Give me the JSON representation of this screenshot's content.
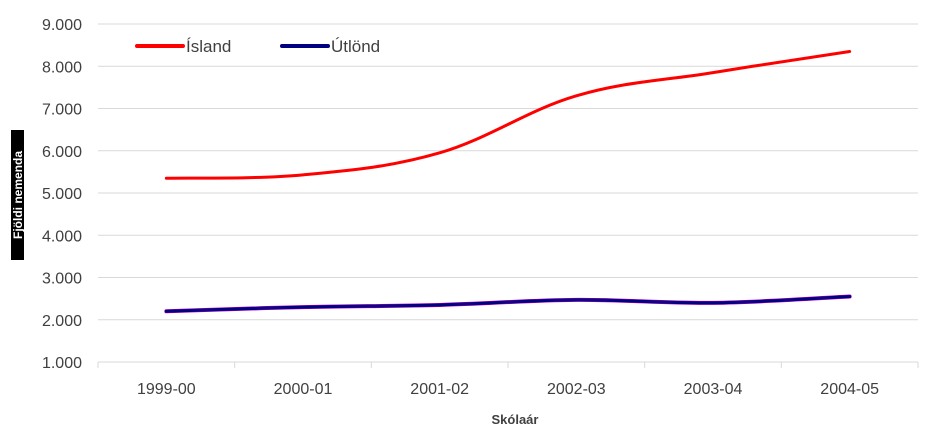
{
  "chart_data": {
    "type": "line",
    "title": "",
    "xlabel": "Skólaár",
    "ylabel": "Fjöldi nemenda",
    "categories": [
      "1999-00",
      "2000-01",
      "2001-02",
      "2002-03",
      "2003-04",
      "2004-05"
    ],
    "y_ticks": [
      "1.000",
      "2.000",
      "3.000",
      "4.000",
      "5.000",
      "6.000",
      "7.000",
      "8.000",
      "9.000"
    ],
    "ylim": [
      1000,
      9000
    ],
    "grid": true,
    "legend": "top-left",
    "series": [
      {
        "name": "Ísland",
        "color": "#ff0000",
        "values": [
          5350,
          5430,
          5950,
          7300,
          7850,
          8350
        ]
      },
      {
        "name": "Útlönd",
        "color": "#000080",
        "values": [
          2200,
          2300,
          2350,
          2470,
          2400,
          2550
        ]
      }
    ]
  }
}
